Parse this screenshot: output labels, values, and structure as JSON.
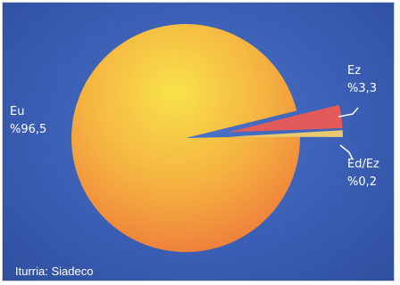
{
  "chart_data": {
    "type": "pie",
    "slices": [
      {
        "name": "Eu",
        "value": 96.5,
        "label": "%96,5",
        "color": "#f5c43a"
      },
      {
        "name": "Ez",
        "value": 3.3,
        "label": "%3,3",
        "color": "#e25a5a"
      },
      {
        "name": "Ed/Ez",
        "value": 0.2,
        "label": "%0,2",
        "color": "#e8c870"
      }
    ]
  },
  "source": "Iturria: Siadeco"
}
